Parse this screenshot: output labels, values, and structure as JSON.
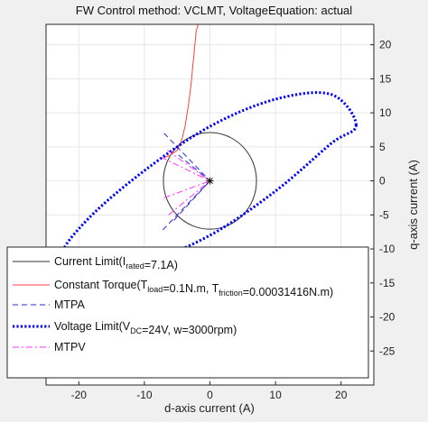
{
  "window": {
    "title": "FW Control method: VCLMT, VoltageEquation: actual"
  },
  "chart_data": {
    "type": "line",
    "title": "FW Control method: VCLMT, VoltageEquation: actual",
    "xlabel": "d-axis current (A)",
    "ylabel": "q-axis current (A)",
    "xlim": [
      -25,
      25
    ],
    "ylim": [
      -30,
      23
    ],
    "xticks": [
      -20,
      -10,
      0,
      10,
      20
    ],
    "yticks": [
      -25,
      -20,
      -15,
      -10,
      -5,
      0,
      5,
      10,
      15,
      20
    ],
    "grid": true,
    "legend_location": "lower-left",
    "legend": [
      {
        "id": "current_limit",
        "text_before": "Current Limit(I",
        "sub1": "rated",
        "text_mid": "=7.1A)",
        "sub2": "",
        "text_after": "",
        "color": "#333333",
        "style": "solid"
      },
      {
        "id": "constant_torque",
        "text_before": "Constant Torque(T",
        "sub1": "load",
        "text_mid": "=0.1N.m, T",
        "sub2": "friction",
        "text_after": "=0.00031416N.m)",
        "color": "#ff4040",
        "style": "solid"
      },
      {
        "id": "mtpa",
        "text_before": "MTPA",
        "sub1": "",
        "text_mid": "",
        "sub2": "",
        "text_after": "",
        "color": "#2a2ad8",
        "style": "dashed"
      },
      {
        "id": "voltage_limit",
        "text_before": "Voltage Limit(V",
        "sub1": "DC",
        "text_mid": "=24V, w=3000rpm)",
        "sub2": "",
        "text_after": "",
        "color": "#0000ff",
        "style": "dotted"
      },
      {
        "id": "mtpv",
        "text_before": "MTPV",
        "sub1": "",
        "text_mid": "",
        "sub2": "",
        "text_after": "",
        "color": "#ff33ff",
        "style": "dashdot"
      }
    ],
    "series": [
      {
        "name": "Current Limit(Irated=7.1A)",
        "kind": "circle",
        "center": [
          0,
          0
        ],
        "radius": 7.1,
        "color": "#333333"
      },
      {
        "name": "Constant Torque(Tload=0.1N.m, Tfriction=0.00031416N.m)",
        "kind": "polyline",
        "color": "#ff4040",
        "x": [
          -7.0,
          -6.0,
          -5.0,
          -4.3,
          -3.8,
          -3.3,
          -2.9,
          -2.6,
          -2.3,
          -2.1,
          -1.8
        ],
        "y": [
          3.4,
          3.8,
          4.5,
          6.0,
          8.0,
          11.0,
          14.0,
          17.0,
          20.0,
          22.0,
          23.0
        ]
      },
      {
        "name": "MTPA",
        "kind": "polyline",
        "color": "#2a2ad8",
        "segments": [
          {
            "x": [
              -7.0,
              0
            ],
            "y": [
              7.0,
              0
            ]
          },
          {
            "x": [
              -5.5,
              0
            ],
            "y": [
              -5.8,
              0
            ]
          },
          {
            "x": [
              -7.2,
              0
            ],
            "y": [
              -7.2,
              0
            ]
          },
          {
            "x": [
              -4.8,
              0
            ],
            "y": [
              3.8,
              0
            ]
          }
        ]
      },
      {
        "name": "Voltage Limit(VDC=24V, w=3000rpm)",
        "kind": "ellipse",
        "color": "#0000ff",
        "x": [
          22.3,
          18.5,
          10.0,
          0.0,
          -10.0,
          -18.5,
          -22.6,
          -18.5,
          -10.0,
          0.0,
          10.0,
          18.5,
          22.3
        ],
        "y": [
          8.2,
          12.7,
          12.0,
          8.0,
          1.5,
          -5.5,
          -11.0,
          -13.0,
          -12.0,
          -8.0,
          -1.5,
          5.5,
          8.2
        ]
      },
      {
        "name": "MTPV",
        "kind": "polyline",
        "color": "#ff33ff",
        "segments": [
          {
            "x": [
              -6.3,
              0
            ],
            "y": [
              -5.0,
              0
            ]
          },
          {
            "x": [
              -7.0,
              0
            ],
            "y": [
              -2.5,
              0
            ]
          },
          {
            "x": [
              -6.5,
              0
            ],
            "y": [
              4.5,
              0
            ]
          },
          {
            "x": [
              -7.5,
              0
            ],
            "y": [
              3.5,
              0
            ]
          }
        ]
      }
    ],
    "annotations": [
      {
        "kind": "marker",
        "symbol": "*",
        "x": 0,
        "y": 0
      }
    ]
  }
}
